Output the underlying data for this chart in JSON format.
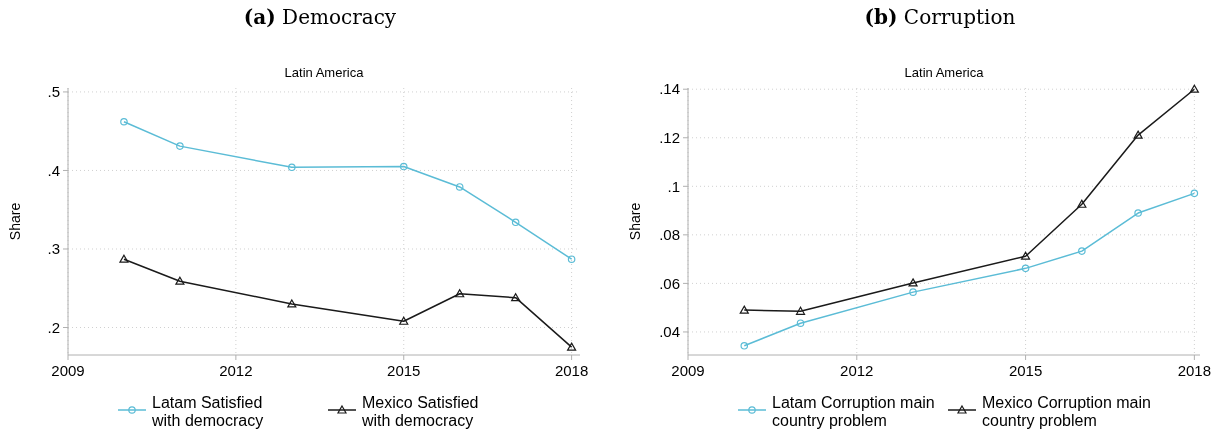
{
  "chart_data": [
    {
      "type": "line",
      "title": "(a) Democracy",
      "subtitle": "Latin America",
      "ylabel": "Share",
      "x": [
        2010,
        2011,
        2013,
        2015,
        2016,
        2017,
        2018
      ],
      "series": [
        {
          "name": "Latam Satisfied\nwith democracy",
          "color": "#5bbcd6",
          "marker": "circle",
          "values": [
            0.462,
            0.431,
            0.404,
            0.405,
            0.379,
            0.334,
            0.287
          ]
        },
        {
          "name": "Mexico Satisfied\nwith democracy",
          "color": "#1a1a1a",
          "marker": "triangle",
          "values": [
            0.287,
            0.259,
            0.23,
            0.208,
            0.243,
            0.238,
            0.175
          ]
        }
      ],
      "xlim": [
        2009,
        2018.15
      ],
      "xticks": [
        2009,
        2012,
        2015,
        2018
      ],
      "ylim": [
        0.165,
        0.505
      ],
      "yticks": [
        {
          "value": 0.2,
          "label": ".2"
        },
        {
          "value": 0.3,
          "label": ".3"
        },
        {
          "value": 0.4,
          "label": ".4"
        },
        {
          "value": 0.5,
          "label": ".5"
        }
      ],
      "grid": true,
      "legend": "bottom"
    },
    {
      "type": "line",
      "title": "(b) Corruption",
      "subtitle": "Latin America",
      "ylabel": "Share",
      "x": [
        2010,
        2011,
        2013,
        2015,
        2016,
        2017,
        2018
      ],
      "series": [
        {
          "name": "Latam Corruption main\ncountry problem",
          "color": "#5bbcd6",
          "marker": "circle",
          "values": [
            0.0343,
            0.0436,
            0.0564,
            0.0662,
            0.0733,
            0.089,
            0.0971
          ]
        },
        {
          "name": "Mexico Corruption main\ncountry problem",
          "color": "#1a1a1a",
          "marker": "triangle",
          "values": [
            0.049,
            0.0485,
            0.0602,
            0.0712,
            0.0926,
            0.1211,
            0.14
          ]
        }
      ],
      "xlim": [
        2009,
        2018.1
      ],
      "xticks": [
        2009,
        2012,
        2015,
        2018
      ],
      "ylim": [
        0.0305,
        0.1405
      ],
      "yticks": [
        {
          "value": 0.04,
          "label": ".04"
        },
        {
          "value": 0.06,
          "label": ".06"
        },
        {
          "value": 0.08,
          "label": ".08"
        },
        {
          "value": 0.1,
          "label": ".1"
        },
        {
          "value": 0.12,
          "label": ".12"
        },
        {
          "value": 0.14,
          "label": ".14"
        }
      ],
      "grid": true,
      "legend": "bottom"
    }
  ]
}
